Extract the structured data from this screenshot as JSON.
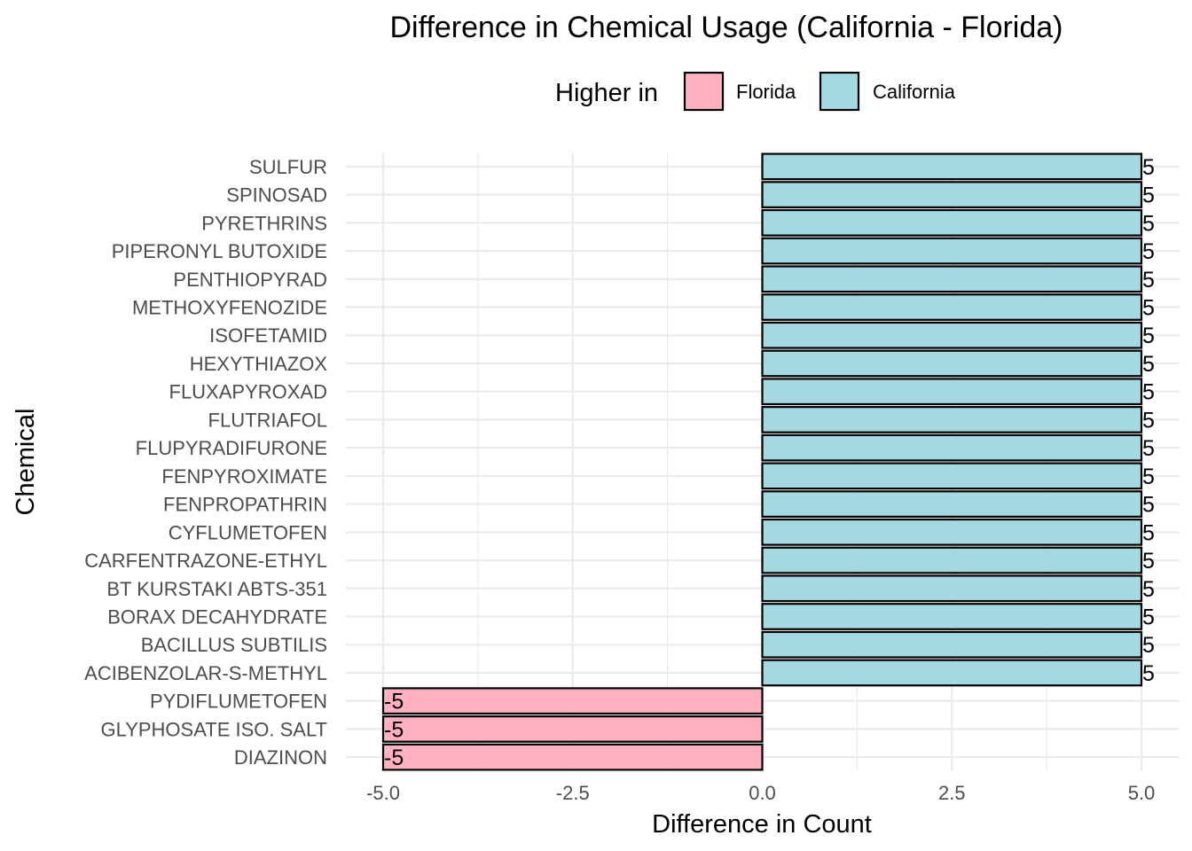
{
  "chart_data": {
    "type": "bar",
    "orientation": "horizontal",
    "title": "Difference in Chemical Usage (California - Florida)",
    "xlabel": "Difference in Count",
    "ylabel": "Chemical",
    "xlim": [
      -5.2,
      5.2
    ],
    "x_ticks": [
      "-5.0",
      "-2.5",
      "0.0",
      "2.5",
      "5.0"
    ],
    "x_tick_values": [
      -5,
      -2.5,
      0,
      2.5,
      5
    ],
    "grid": true,
    "legend": {
      "title": "Higher in",
      "placement": "top",
      "entries": [
        {
          "label": "Florida",
          "color": "#FFB0C1"
        },
        {
          "label": "California",
          "color": "#A4D9E2"
        }
      ]
    },
    "categories": [
      "SULFUR",
      "SPINOSAD",
      "PYRETHRINS",
      "PIPERONYL BUTOXIDE",
      "PENTHIOPYRAD",
      "METHOXYFENOZIDE",
      "ISOFETAMID",
      "HEXYTHIAZOX",
      "FLUXAPYROXAD",
      "FLUTRIAFOL",
      "FLUPYRADIFURONE",
      "FENPYROXIMATE",
      "FENPROPATHRIN",
      "CYFLUMETOFEN",
      "CARFENTRAZONE-ETHYL",
      "BT KURSTAKI ABTS-351",
      "BORAX DECAHYDRATE",
      "BACILLUS SUBTILIS",
      "ACIBENZOLAR-S-METHYL",
      "PYDIFLUMETOFEN",
      "GLYPHOSATE ISO. SALT",
      "DIAZINON"
    ],
    "values": [
      5,
      5,
      5,
      5,
      5,
      5,
      5,
      5,
      5,
      5,
      5,
      5,
      5,
      5,
      5,
      5,
      5,
      5,
      5,
      -5,
      -5,
      -5
    ],
    "data_labels": [
      "5",
      "5",
      "5",
      "5",
      "5",
      "5",
      "5",
      "5",
      "5",
      "5",
      "5",
      "5",
      "5",
      "5",
      "5",
      "5",
      "5",
      "5",
      "5",
      "-5",
      "-5",
      "-5"
    ],
    "higher_in": [
      "California",
      "California",
      "California",
      "California",
      "California",
      "California",
      "California",
      "California",
      "California",
      "California",
      "California",
      "California",
      "California",
      "California",
      "California",
      "California",
      "California",
      "California",
      "California",
      "Florida",
      "Florida",
      "Florida"
    ]
  }
}
